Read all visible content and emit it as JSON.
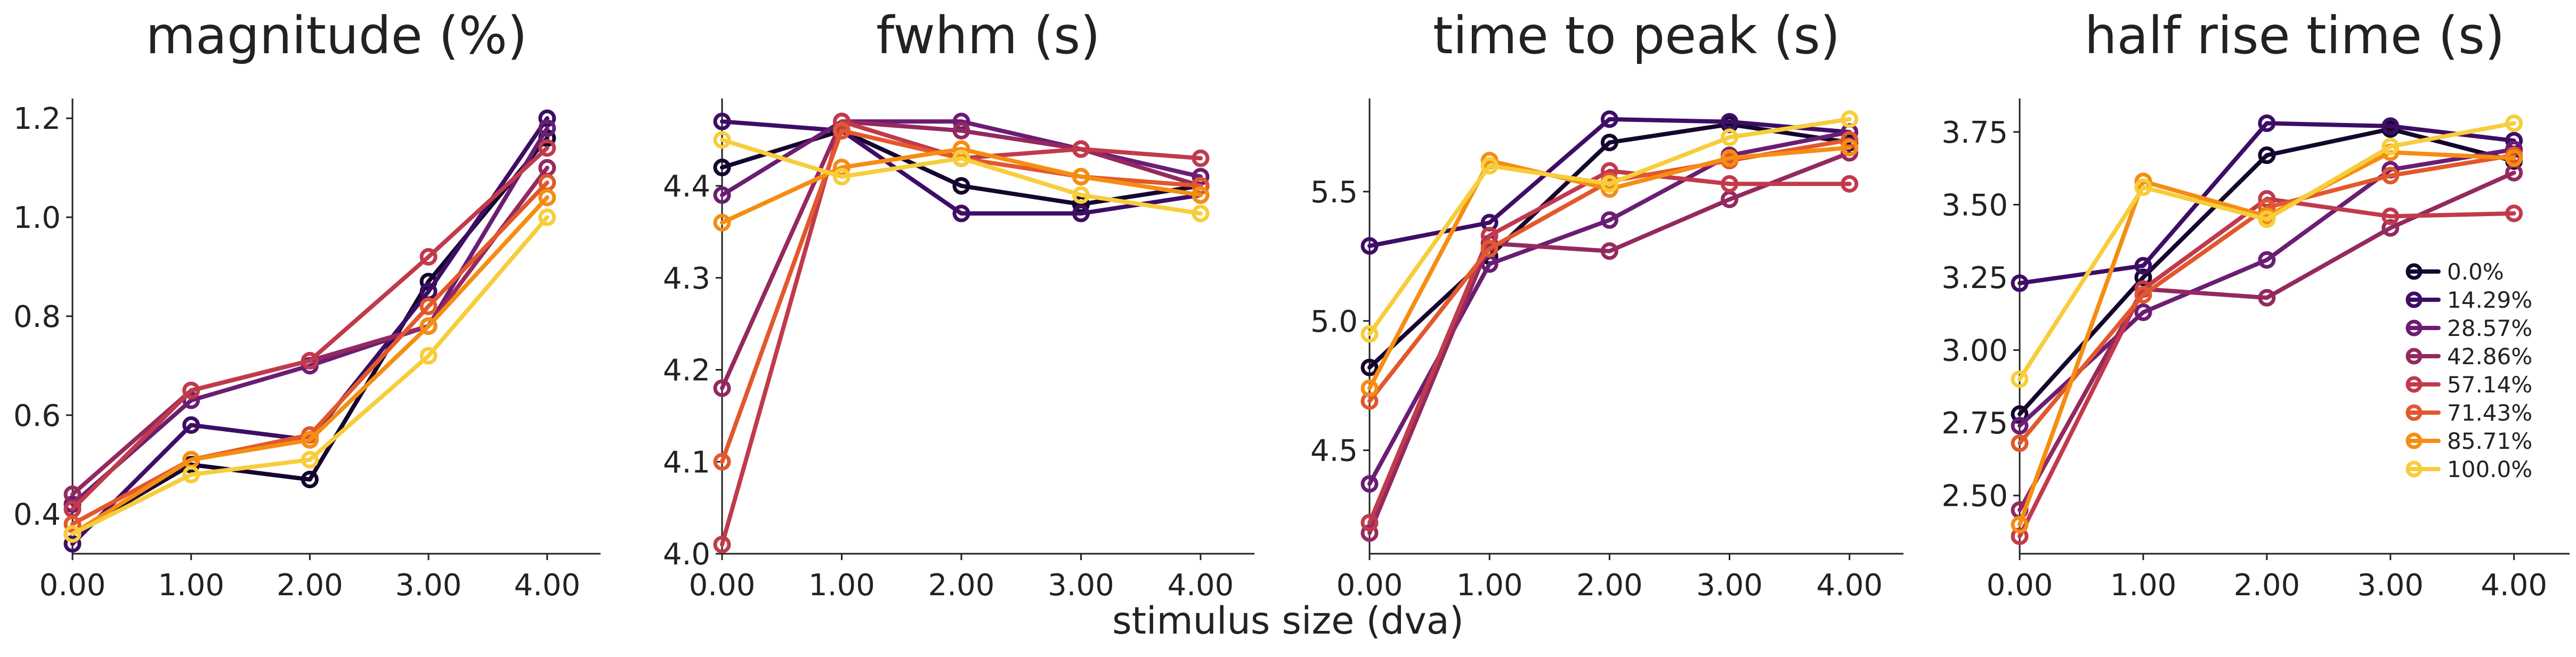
{
  "figure": {
    "xlabel": "stimulus size (dva)"
  },
  "legend": {
    "entries": [
      {
        "label": "0.0%",
        "color": "#14062e"
      },
      {
        "label": "14.29%",
        "color": "#3e0d66"
      },
      {
        "label": "28.57%",
        "color": "#6b1d73"
      },
      {
        "label": "42.86%",
        "color": "#94295f"
      },
      {
        "label": "57.14%",
        "color": "#c13a4c"
      },
      {
        "label": "71.43%",
        "color": "#e2582c"
      },
      {
        "label": "85.71%",
        "color": "#f58d12"
      },
      {
        "label": "100.0%",
        "color": "#f7cd3b"
      }
    ]
  },
  "chart_data": [
    {
      "type": "line",
      "title": "magnitude (%)",
      "xlabel": "stimulus size (dva)",
      "ylabel": "",
      "x": [
        0,
        1,
        2,
        3,
        4
      ],
      "x_tick_labels": [
        "0.00",
        "1.00",
        "2.00",
        "3.00",
        "4.00"
      ],
      "xlim": [
        0,
        4.45
      ],
      "ylim": [
        0.32,
        1.24
      ],
      "y_ticks": [
        0.4,
        0.6,
        0.8,
        1.0,
        1.2
      ],
      "y_tick_labels": [
        "0.4",
        "0.6",
        "0.8",
        "1.0",
        "1.2"
      ],
      "grid": false,
      "series": [
        {
          "name": "0.0%",
          "values": [
            0.36,
            0.5,
            0.47,
            0.87,
            1.16
          ]
        },
        {
          "name": "14.29%",
          "values": [
            0.34,
            0.58,
            0.55,
            0.85,
            1.2
          ]
        },
        {
          "name": "28.57%",
          "values": [
            0.42,
            0.63,
            0.7,
            0.78,
            1.18
          ]
        },
        {
          "name": "42.86%",
          "values": [
            0.44,
            0.65,
            0.71,
            0.78,
            1.1
          ]
        },
        {
          "name": "57.14%",
          "values": [
            0.41,
            0.65,
            0.71,
            0.92,
            1.14
          ]
        },
        {
          "name": "71.43%",
          "values": [
            0.38,
            0.51,
            0.56,
            0.82,
            1.07
          ]
        },
        {
          "name": "85.71%",
          "values": [
            0.36,
            0.51,
            0.55,
            0.78,
            1.04
          ]
        },
        {
          "name": "100.0%",
          "values": [
            0.36,
            0.48,
            0.51,
            0.72,
            1.0
          ]
        }
      ]
    },
    {
      "type": "line",
      "title": "fwhm (s)",
      "xlabel": "stimulus size (dva)",
      "ylabel": "",
      "x": [
        0,
        1,
        2,
        3,
        4
      ],
      "x_tick_labels": [
        "0.00",
        "1.00",
        "2.00",
        "3.00",
        "4.00"
      ],
      "xlim": [
        0,
        4.45
      ],
      "ylim": [
        4.0,
        4.495
      ],
      "y_ticks": [
        4.0,
        4.1,
        4.2,
        4.3,
        4.4
      ],
      "y_tick_labels": [
        "4.0",
        "4.1",
        "4.2",
        "4.3",
        "4.4"
      ],
      "grid": false,
      "series": [
        {
          "name": "0.0%",
          "values": [
            4.42,
            4.46,
            4.4,
            4.38,
            4.4
          ]
        },
        {
          "name": "14.29%",
          "values": [
            4.47,
            4.46,
            4.37,
            4.37,
            4.39
          ]
        },
        {
          "name": "28.57%",
          "values": [
            4.39,
            4.47,
            4.47,
            4.44,
            4.41
          ]
        },
        {
          "name": "42.86%",
          "values": [
            4.18,
            4.47,
            4.46,
            4.44,
            4.4
          ]
        },
        {
          "name": "57.14%",
          "values": [
            4.01,
            4.47,
            4.43,
            4.44,
            4.43
          ]
        },
        {
          "name": "71.43%",
          "values": [
            4.1,
            4.46,
            4.43,
            4.41,
            4.4
          ]
        },
        {
          "name": "85.71%",
          "values": [
            4.36,
            4.42,
            4.44,
            4.41,
            4.39
          ]
        },
        {
          "name": "100.0%",
          "values": [
            4.45,
            4.41,
            4.43,
            4.39,
            4.37
          ]
        }
      ]
    },
    {
      "type": "line",
      "title": "time to peak (s)",
      "xlabel": "stimulus size (dva)",
      "ylabel": "",
      "x": [
        0,
        1,
        2,
        3,
        4
      ],
      "x_tick_labels": [
        "0.00",
        "1.00",
        "2.00",
        "3.00",
        "4.00"
      ],
      "xlim": [
        0,
        4.45
      ],
      "ylim": [
        4.1,
        5.86
      ],
      "y_ticks": [
        4.5,
        5.0,
        5.5
      ],
      "y_tick_labels": [
        "4.5",
        "5.0",
        "5.5"
      ],
      "grid": false,
      "series": [
        {
          "name": "0.0%",
          "values": [
            4.82,
            5.25,
            5.69,
            5.76,
            5.69
          ]
        },
        {
          "name": "14.29%",
          "values": [
            5.29,
            5.38,
            5.78,
            5.77,
            5.73
          ]
        },
        {
          "name": "28.57%",
          "values": [
            4.37,
            5.22,
            5.39,
            5.64,
            5.73
          ]
        },
        {
          "name": "42.86%",
          "values": [
            4.18,
            5.3,
            5.27,
            5.47,
            5.65
          ]
        },
        {
          "name": "57.14%",
          "values": [
            4.22,
            5.33,
            5.58,
            5.53,
            5.53
          ]
        },
        {
          "name": "71.43%",
          "values": [
            4.69,
            5.28,
            5.54,
            5.62,
            5.7
          ]
        },
        {
          "name": "85.71%",
          "values": [
            4.74,
            5.62,
            5.51,
            5.63,
            5.67
          ]
        },
        {
          "name": "100.0%",
          "values": [
            4.95,
            5.6,
            5.53,
            5.71,
            5.78
          ]
        }
      ]
    },
    {
      "type": "line",
      "title": "half rise time (s)",
      "xlabel": "stimulus size (dva)",
      "ylabel": "",
      "x": [
        0,
        1,
        2,
        3,
        4
      ],
      "x_tick_labels": [
        "0.00",
        "1.00",
        "2.00",
        "3.00",
        "4.00"
      ],
      "xlim": [
        0,
        4.45
      ],
      "ylim": [
        2.3,
        3.865
      ],
      "y_ticks": [
        2.5,
        2.75,
        3.0,
        3.25,
        3.5,
        3.75
      ],
      "y_tick_labels": [
        "2.50",
        "2.75",
        "3.00",
        "3.25",
        "3.50",
        "3.75"
      ],
      "grid": false,
      "legend_position": "right",
      "series": [
        {
          "name": "0.0%",
          "values": [
            2.78,
            3.25,
            3.67,
            3.76,
            3.65
          ]
        },
        {
          "name": "14.29%",
          "values": [
            3.23,
            3.29,
            3.78,
            3.77,
            3.72
          ]
        },
        {
          "name": "28.57%",
          "values": [
            2.74,
            3.13,
            3.31,
            3.62,
            3.69
          ]
        },
        {
          "name": "42.86%",
          "values": [
            2.45,
            3.21,
            3.18,
            3.42,
            3.61
          ]
        },
        {
          "name": "57.14%",
          "values": [
            2.36,
            3.21,
            3.52,
            3.46,
            3.47
          ]
        },
        {
          "name": "71.43%",
          "values": [
            2.68,
            3.19,
            3.49,
            3.6,
            3.67
          ]
        },
        {
          "name": "85.71%",
          "values": [
            2.4,
            3.58,
            3.46,
            3.68,
            3.66
          ]
        },
        {
          "name": "100.0%",
          "values": [
            2.9,
            3.56,
            3.45,
            3.7,
            3.78
          ]
        }
      ]
    }
  ]
}
